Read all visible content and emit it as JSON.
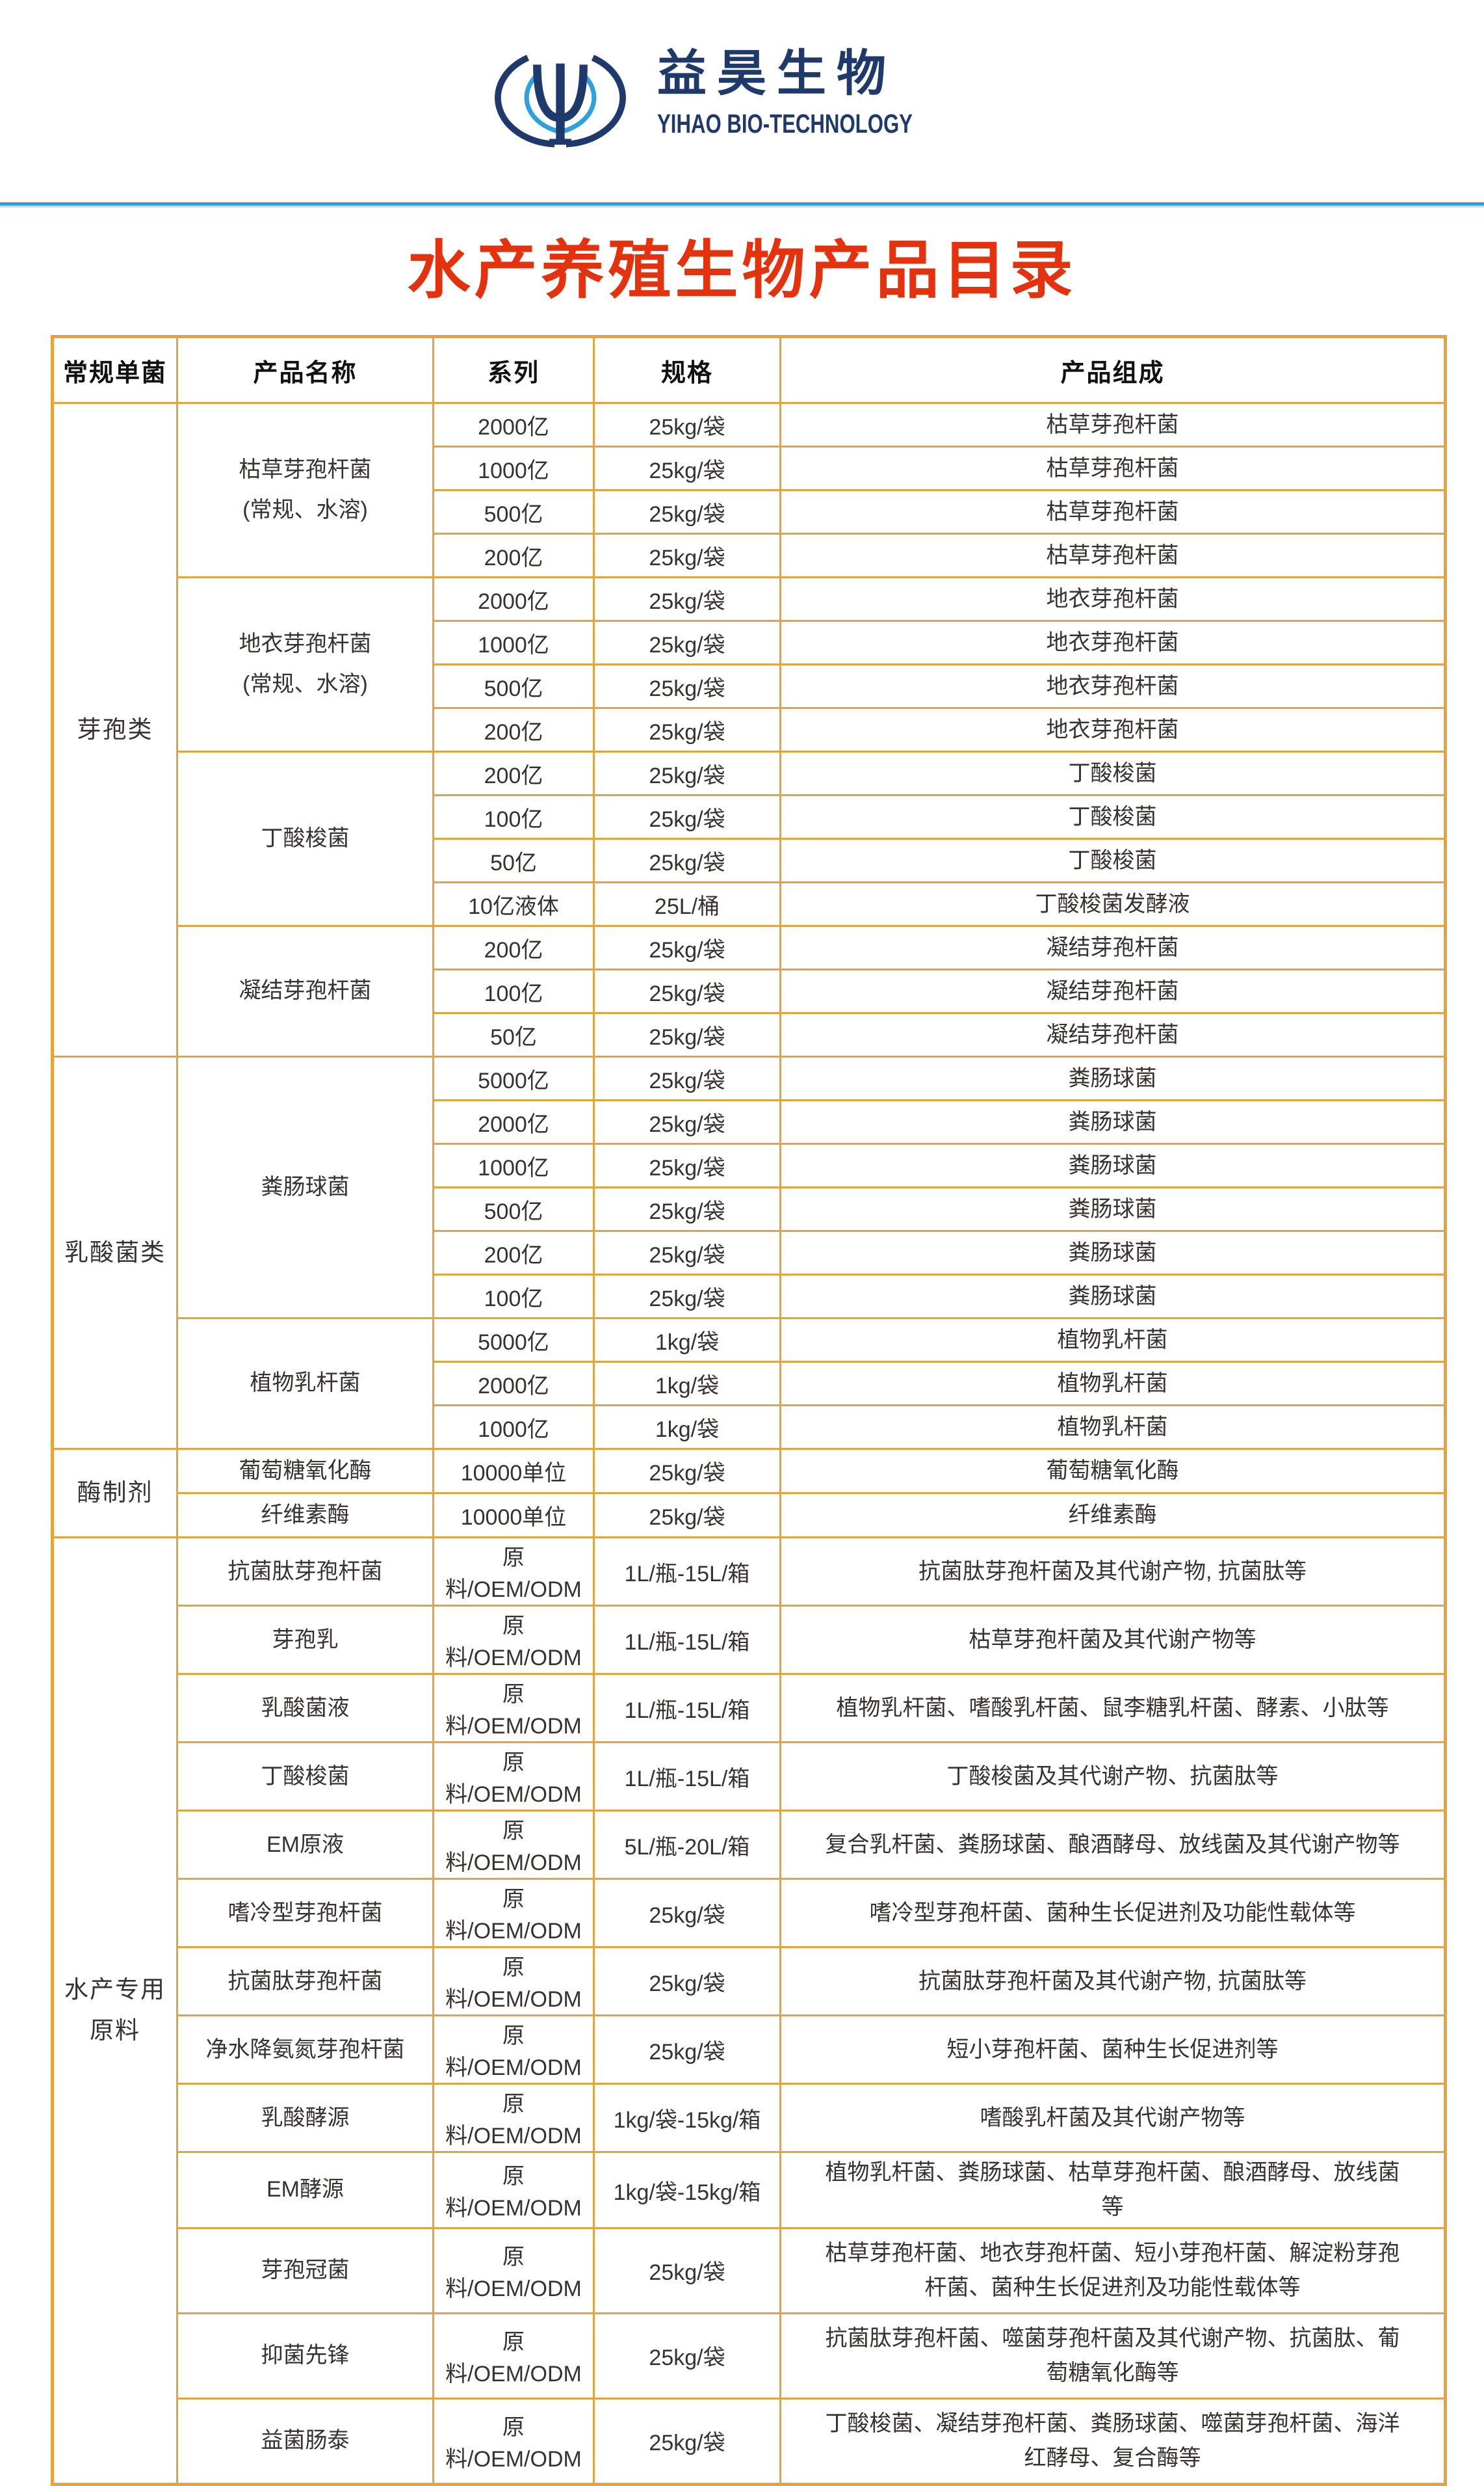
{
  "colors": {
    "navy": "#1e3a6d",
    "lightblue": "#2fa0db",
    "divider": "#2aa1da",
    "red": "#e5320e",
    "accent": "#e6a23c",
    "text": "#37322f",
    "header-text": "#111111"
  },
  "logo": {
    "mark": "psi-in-brackets-icon",
    "company_cn": "益昊生物",
    "company_en": "YIHAO BIO-TECHNOLOGY"
  },
  "title": "水产养殖生物产品目录",
  "table": {
    "headers": [
      "常规单菌",
      "产品名称",
      "系列",
      "规格",
      "产品组成"
    ],
    "categories": [
      {
        "name": "芽孢类",
        "groups": [
          {
            "product": "枯草芽孢杆菌\n(常规、水溶)",
            "rows": [
              {
                "series": "2000亿",
                "spec": "25kg/袋",
                "comp": "枯草芽孢杆菌"
              },
              {
                "series": "1000亿",
                "spec": "25kg/袋",
                "comp": "枯草芽孢杆菌"
              },
              {
                "series": "500亿",
                "spec": "25kg/袋",
                "comp": "枯草芽孢杆菌"
              },
              {
                "series": "200亿",
                "spec": "25kg/袋",
                "comp": "枯草芽孢杆菌"
              }
            ]
          },
          {
            "product": "地衣芽孢杆菌\n(常规、水溶)",
            "rows": [
              {
                "series": "2000亿",
                "spec": "25kg/袋",
                "comp": "地衣芽孢杆菌"
              },
              {
                "series": "1000亿",
                "spec": "25kg/袋",
                "comp": "地衣芽孢杆菌"
              },
              {
                "series": "500亿",
                "spec": "25kg/袋",
                "comp": "地衣芽孢杆菌"
              },
              {
                "series": "200亿",
                "spec": "25kg/袋",
                "comp": "地衣芽孢杆菌"
              }
            ]
          },
          {
            "product": "丁酸梭菌",
            "rows": [
              {
                "series": "200亿",
                "spec": "25kg/袋",
                "comp": "丁酸梭菌"
              },
              {
                "series": "100亿",
                "spec": "25kg/袋",
                "comp": "丁酸梭菌"
              },
              {
                "series": "50亿",
                "spec": "25kg/袋",
                "comp": "丁酸梭菌"
              },
              {
                "series": "10亿液体",
                "spec": "25L/桶",
                "comp": "丁酸梭菌发酵液"
              }
            ]
          },
          {
            "product": "凝结芽孢杆菌",
            "rows": [
              {
                "series": "200亿",
                "spec": "25kg/袋",
                "comp": "凝结芽孢杆菌"
              },
              {
                "series": "100亿",
                "spec": "25kg/袋",
                "comp": "凝结芽孢杆菌"
              },
              {
                "series": "50亿",
                "spec": "25kg/袋",
                "comp": "凝结芽孢杆菌"
              }
            ]
          }
        ]
      },
      {
        "name": "乳酸菌类",
        "groups": [
          {
            "product": "粪肠球菌",
            "rows": [
              {
                "series": "5000亿",
                "spec": "25kg/袋",
                "comp": "粪肠球菌"
              },
              {
                "series": "2000亿",
                "spec": "25kg/袋",
                "comp": "粪肠球菌"
              },
              {
                "series": "1000亿",
                "spec": "25kg/袋",
                "comp": "粪肠球菌"
              },
              {
                "series": "500亿",
                "spec": "25kg/袋",
                "comp": "粪肠球菌"
              },
              {
                "series": "200亿",
                "spec": "25kg/袋",
                "comp": "粪肠球菌"
              },
              {
                "series": "100亿",
                "spec": "25kg/袋",
                "comp": "粪肠球菌"
              }
            ]
          },
          {
            "product": "植物乳杆菌",
            "rows": [
              {
                "series": "5000亿",
                "spec": "1kg/袋",
                "comp": "植物乳杆菌"
              },
              {
                "series": "2000亿",
                "spec": "1kg/袋",
                "comp": "植物乳杆菌"
              },
              {
                "series": "1000亿",
                "spec": "1kg/袋",
                "comp": "植物乳杆菌"
              }
            ]
          }
        ]
      },
      {
        "name": "酶制剂",
        "groups": [
          {
            "product": "葡萄糖氧化酶",
            "rows": [
              {
                "series": "10000单位",
                "spec": "25kg/袋",
                "comp": "葡萄糖氧化酶"
              }
            ]
          },
          {
            "product": "纤维素酶",
            "rows": [
              {
                "series": "10000单位",
                "spec": "25kg/袋",
                "comp": "纤维素酶"
              }
            ]
          }
        ]
      },
      {
        "name": "水产专用\n原料",
        "groups": [
          {
            "product": "抗菌肽芽孢杆菌",
            "rows": [
              {
                "series": "原料/OEM/ODM",
                "spec": "1L/瓶-15L/箱",
                "comp": "抗菌肽芽孢杆菌及其代谢产物, 抗菌肽等"
              }
            ]
          },
          {
            "product": "芽孢乳",
            "rows": [
              {
                "series": "原料/OEM/ODM",
                "spec": "1L/瓶-15L/箱",
                "comp": "枯草芽孢杆菌及其代谢产物等"
              }
            ]
          },
          {
            "product": "乳酸菌液",
            "rows": [
              {
                "series": "原料/OEM/ODM",
                "spec": "1L/瓶-15L/箱",
                "comp": "植物乳杆菌、嗜酸乳杆菌、鼠李糖乳杆菌、酵素、小肽等"
              }
            ]
          },
          {
            "product": "丁酸梭菌",
            "rows": [
              {
                "series": "原料/OEM/ODM",
                "spec": "1L/瓶-15L/箱",
                "comp": "丁酸梭菌及其代谢产物、抗菌肽等"
              }
            ]
          },
          {
            "product": "EM原液",
            "rows": [
              {
                "series": "原料/OEM/ODM",
                "spec": "5L/瓶-20L/箱",
                "comp": "复合乳杆菌、粪肠球菌、酿酒酵母、放线菌及其代谢产物等"
              }
            ]
          },
          {
            "product": "嗜冷型芽孢杆菌",
            "rows": [
              {
                "series": "原料/OEM/ODM",
                "spec": "25kg/袋",
                "comp": "嗜冷型芽孢杆菌、菌种生长促进剂及功能性载体等"
              }
            ]
          },
          {
            "product": "抗菌肽芽孢杆菌",
            "rows": [
              {
                "series": "原料/OEM/ODM",
                "spec": "25kg/袋",
                "comp": "抗菌肽芽孢杆菌及其代谢产物, 抗菌肽等"
              }
            ]
          },
          {
            "product": "净水降氨氮芽孢杆菌",
            "rows": [
              {
                "series": "原料/OEM/ODM",
                "spec": "25kg/袋",
                "comp": "短小芽孢杆菌、菌种生长促进剂等"
              }
            ]
          },
          {
            "product": "乳酸酵源",
            "rows": [
              {
                "series": "原料/OEM/ODM",
                "spec": "1kg/袋-15kg/箱",
                "comp": "嗜酸乳杆菌及其代谢产物等"
              }
            ]
          },
          {
            "product": "EM酵源",
            "rows": [
              {
                "series": "原料/OEM/ODM",
                "spec": "1kg/袋-15kg/箱",
                "comp": "植物乳杆菌、粪肠球菌、枯草芽孢杆菌、酿酒酵母、放线菌等"
              }
            ]
          },
          {
            "product": "芽孢冠菌",
            "rows": [
              {
                "series": "原料/OEM/ODM",
                "spec": "25kg/袋",
                "comp": "枯草芽孢杆菌、地衣芽孢杆菌、短小芽孢杆菌、解淀粉芽孢杆菌、菌种生长促进剂及功能性载体等",
                "tall": true
              }
            ]
          },
          {
            "product": "抑菌先锋",
            "rows": [
              {
                "series": "原料/OEM/ODM",
                "spec": "25kg/袋",
                "comp": "抗菌肽芽孢杆菌、噬菌芽孢杆菌及其代谢产物、抗菌肽、葡萄糖氧化酶等",
                "tall": true
              }
            ]
          },
          {
            "product": "益菌肠泰",
            "rows": [
              {
                "series": "原料/OEM/ODM",
                "spec": "25kg/袋",
                "comp": "丁酸梭菌、凝结芽孢杆菌、粪肠球菌、噬菌芽孢杆菌、海洋红酵母、复合酶等",
                "tall": true
              }
            ]
          }
        ]
      }
    ]
  }
}
